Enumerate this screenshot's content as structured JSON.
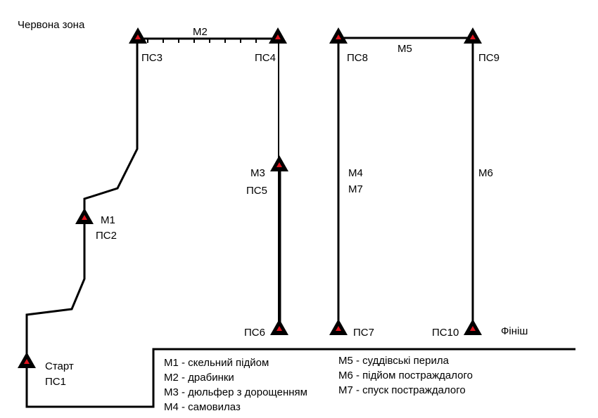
{
  "zone_label": "Червона зона",
  "stations": {
    "start": {
      "label": "ПС1",
      "name": "Старт"
    },
    "ps2": {
      "label": "ПС2",
      "stage": "М1"
    },
    "ps3": {
      "label": "ПС3"
    },
    "ps4": {
      "label": "ПС4"
    },
    "ps5": {
      "label": "ПС5",
      "stage": "М3"
    },
    "ps6": {
      "label": "ПС6"
    },
    "ps7": {
      "label": "ПС7"
    },
    "ps8": {
      "label": "ПС8"
    },
    "ps9": {
      "label": "ПС9"
    },
    "ps10": {
      "label": "ПС10",
      "name": "Фініш"
    }
  },
  "stage_labels": {
    "m2": "М2",
    "m5": "М5",
    "m4": "М4",
    "m7": "М7",
    "m6": "М6"
  },
  "legend": {
    "left": [
      "М1 - скельний підйом",
      "М2 - драбинки",
      "М3 - дюльфер з дорощенням",
      "М4 - самовилаз"
    ],
    "right": [
      "М5 - суддівські перила",
      "М6 - підйом постраждалого",
      "М7 - спуск постраждалого"
    ]
  },
  "colors": {
    "line": "#000000",
    "marker": "#000000",
    "marker_center": "#e0141e"
  }
}
